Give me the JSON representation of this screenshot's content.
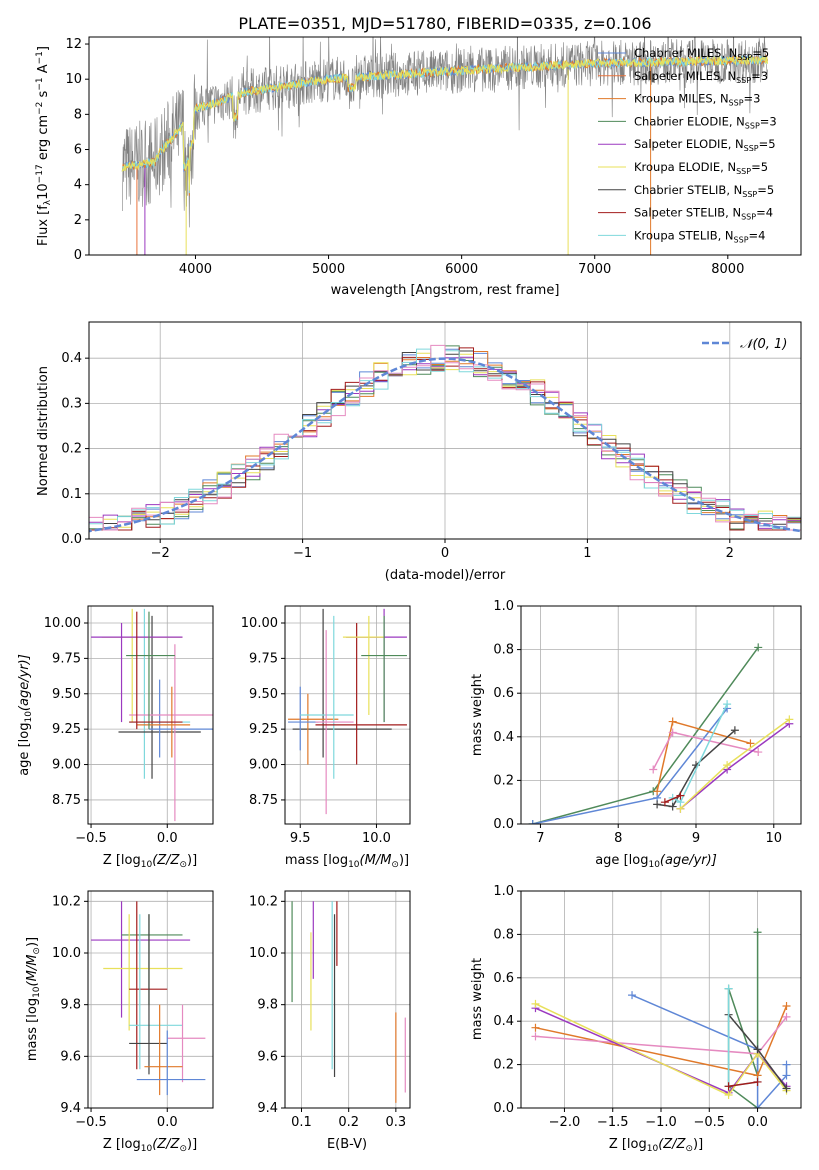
{
  "colors": {
    "c1": "#5f87d6",
    "c2": "#e8733c",
    "c3": "#e0792a",
    "c4": "#4f8a5a",
    "c5": "#9b39c0",
    "c6": "#e8e05a",
    "c7": "#444444",
    "c8": "#a21c1c",
    "c9": "#7fd8dc",
    "pink": "#e58ac0",
    "gray": "#808080"
  },
  "chart_data": [
    {
      "type": "line",
      "title": "PLATE=0351, MJD=51780, FIBERID=0335, z=0.106",
      "xlabel": "wavelength [Angstrom, rest frame]",
      "ylabel_main": "Flux [f",
      "ylabel_sub": "λ",
      "ylabel_mid": "10",
      "ylabel_sup1": "−17",
      "ylabel_end": " erg cm",
      "ylabel_sup2": "−2",
      "ylabel_s": " s",
      "ylabel_sup3": "−1",
      "ylabel_a": " A",
      "ylabel_sup4": "−1",
      "ylabel_close": "]",
      "xlim": [
        3200,
        8550
      ],
      "ylim": [
        0,
        12.4
      ],
      "xticks": [
        "4000",
        "5000",
        "6000",
        "7000",
        "8000"
      ],
      "yticks": [
        "0",
        "2",
        "4",
        "6",
        "8",
        "10",
        "12"
      ],
      "x_start": 3450,
      "x_end": 8300,
      "legend": [
        {
          "name": "Chabrier MILES, N",
          "sub": "SSP",
          "val": "=5"
        },
        {
          "name": "Salpeter MILES, N",
          "sub": "SSP",
          "val": "=3"
        },
        {
          "name": "Kroupa MILES, N",
          "sub": "SSP",
          "val": "=3"
        },
        {
          "name": "Chabrier ELODIE, N",
          "sub": "SSP",
          "val": "=3"
        },
        {
          "name": "Salpeter ELODIE, N",
          "sub": "SSP",
          "val": "=5"
        },
        {
          "name": "Kroupa ELODIE, N",
          "sub": "SSP",
          "val": "=5"
        },
        {
          "name": "Chabrier STELIB, N",
          "sub": "SSP",
          "val": "=5"
        },
        {
          "name": "Salpeter STELIB, N",
          "sub": "SSP",
          "val": "=4"
        },
        {
          "name": "Kroupa STELIB, N",
          "sub": "SSP",
          "val": "=4"
        }
      ]
    },
    {
      "type": "bar",
      "xlabel": "(data-model)/error",
      "ylabel": "Normed distribution",
      "xlim": [
        -2.5,
        2.5
      ],
      "ylim": [
        0,
        0.48
      ],
      "xticks": [
        "−2",
        "−1",
        "0",
        "1",
        "2"
      ],
      "yticks": [
        "0.0",
        "0.1",
        "0.2",
        "0.3",
        "0.4"
      ],
      "legend_label": "𝒩(0, 1)",
      "gaussian": {
        "mean": 0,
        "sigma": 1,
        "peak": 0.399
      },
      "bin_width": 0.1
    },
    {
      "type": "scatter",
      "xlabel_pre": "Z [log",
      "xlabel_sub": "10",
      "xlabel_post": "(Z/Z",
      "xlabel_odot": "⊙",
      "xlabel_end": ")]",
      "ylabel_pre": "age  [log",
      "ylabel_sub": "10",
      "ylabel_post": "(age/yr)]",
      "xlim": [
        -0.52,
        0.3
      ],
      "ylim": [
        8.58,
        10.12
      ],
      "xticks": [
        "−0.5",
        "0.0"
      ],
      "xtick_vals": [
        -0.5,
        0.0
      ],
      "yticks": [
        "8.75",
        "9.00",
        "9.25",
        "9.50",
        "9.75",
        "10.00"
      ],
      "ytick_vals": [
        8.75,
        9.0,
        9.25,
        9.5,
        9.75,
        10.0
      ],
      "points": [
        {
          "x": -0.23,
          "y": 9.9,
          "xe": [
            -0.43,
            0.1
          ],
          "ye": [
            9.3,
            10.1
          ],
          "c": "c6"
        },
        {
          "x": -0.15,
          "y": 9.3,
          "xe": [
            -0.25,
            0.15
          ],
          "ye": [
            8.9,
            10.1
          ],
          "c": "c9"
        },
        {
          "x": -0.1,
          "y": 9.23,
          "xe": [
            -0.32,
            0.22
          ],
          "ye": [
            8.9,
            10.05
          ],
          "c": "c7"
        },
        {
          "x": -0.05,
          "y": 9.25,
          "xe": [
            -0.12,
            0.3
          ],
          "ye": [
            9.05,
            9.6
          ],
          "c": "c1"
        },
        {
          "x": -0.3,
          "y": 9.9,
          "xe": [
            -0.5,
            0.1
          ],
          "ye": [
            9.3,
            10.0
          ],
          "c": "c5"
        },
        {
          "x": 0.05,
          "y": 9.35,
          "xe": [
            -0.25,
            0.3
          ],
          "ye": [
            8.6,
            9.85
          ],
          "c": "pink"
        },
        {
          "x": 0.03,
          "y": 9.28,
          "xe": [
            -0.2,
            0.15
          ],
          "ye": [
            9.05,
            9.55
          ],
          "c": "c3"
        },
        {
          "x": -0.12,
          "y": 9.77,
          "xe": [
            -0.27,
            0.05
          ],
          "ye": [
            9.25,
            10.08
          ],
          "c": "c4"
        },
        {
          "x": -0.2,
          "y": 9.3,
          "xe": [
            -0.25,
            0.1
          ],
          "ye": [
            9.25,
            10.08
          ],
          "c": "c8"
        }
      ]
    },
    {
      "type": "scatter",
      "xlabel_pre": "mass [log",
      "xlabel_sub": "10",
      "xlabel_post": "(M/M",
      "xlabel_odot": "⊙",
      "xlabel_end": ")]",
      "xlim": [
        9.4,
        10.22
      ],
      "ylim": [
        8.58,
        10.12
      ],
      "xticks": [
        "9.5",
        "10.0"
      ],
      "xtick_vals": [
        9.5,
        10.0
      ],
      "yticks": [
        "8.75",
        "9.00",
        "9.25",
        "9.50",
        "9.75",
        "10.00"
      ],
      "ytick_vals": [
        8.75,
        9.0,
        9.25,
        9.5,
        9.75,
        10.0
      ],
      "points": [
        {
          "x": 9.65,
          "y": 9.25,
          "xe": [
            9.45,
            10.1
          ],
          "ye": [
            9.05,
            10.1
          ],
          "c": "c7"
        },
        {
          "x": 9.55,
          "y": 9.32,
          "xe": [
            9.42,
            9.75
          ],
          "ye": [
            9.0,
            9.5
          ],
          "c": "c3"
        },
        {
          "x": 9.5,
          "y": 9.3,
          "xe": [
            9.42,
            9.62
          ],
          "ye": [
            9.1,
            9.55
          ],
          "c": "c1"
        },
        {
          "x": 9.72,
          "y": 9.35,
          "xe": [
            9.5,
            9.85
          ],
          "ye": [
            8.9,
            10.05
          ],
          "c": "c9"
        },
        {
          "x": 9.67,
          "y": 9.3,
          "xe": [
            9.6,
            9.85
          ],
          "ye": [
            8.65,
            9.95
          ],
          "c": "pink"
        },
        {
          "x": 9.87,
          "y": 9.28,
          "xe": [
            9.6,
            10.2
          ],
          "ye": [
            9.0,
            10.0
          ],
          "c": "c8"
        },
        {
          "x": 10.05,
          "y": 9.9,
          "xe": [
            9.8,
            10.2
          ],
          "ye": [
            9.3,
            10.1
          ],
          "c": "c5"
        },
        {
          "x": 9.95,
          "y": 9.9,
          "xe": [
            9.78,
            10.05
          ],
          "ye": [
            9.35,
            10.05
          ],
          "c": "c6"
        },
        {
          "x": 10.05,
          "y": 9.77,
          "xe": [
            9.9,
            10.2
          ],
          "ye": [
            9.3,
            10.05
          ],
          "c": "c4"
        }
      ]
    },
    {
      "type": "line",
      "xlabel_pre": "age  [log",
      "xlabel_sub": "10",
      "xlabel_post": "(age/yr)]",
      "ylabel": "mass weight",
      "xlim": [
        6.75,
        10.35
      ],
      "ylim": [
        0,
        1
      ],
      "xticks": [
        "7",
        "8",
        "9",
        "10"
      ],
      "xtick_vals": [
        7,
        8,
        9,
        10
      ],
      "yticks": [
        "0.0",
        "0.2",
        "0.4",
        "0.6",
        "0.8",
        "1.0"
      ],
      "ytick_vals": [
        0,
        0.2,
        0.4,
        0.6,
        0.8,
        1.0
      ],
      "series": [
        {
          "c": "c4",
          "x": [
            6.9,
            8.45,
            9.8
          ],
          "y": [
            0.0,
            0.15,
            0.81
          ]
        },
        {
          "c": "c1",
          "x": [
            6.9,
            8.5,
            9.4
          ],
          "y": [
            0.0,
            0.12,
            0.53
          ]
        },
        {
          "c": "c3",
          "x": [
            8.5,
            8.7,
            9.7
          ],
          "y": [
            0.15,
            0.47,
            0.37
          ]
        },
        {
          "c": "pink",
          "x": [
            8.45,
            8.7,
            9.8
          ],
          "y": [
            0.25,
            0.42,
            0.33
          ]
        },
        {
          "c": "c5",
          "x": [
            8.8,
            9.4,
            10.2
          ],
          "y": [
            0.07,
            0.25,
            0.46
          ]
        },
        {
          "c": "c6",
          "x": [
            8.8,
            9.4,
            10.2
          ],
          "y": [
            0.07,
            0.27,
            0.48
          ]
        },
        {
          "c": "c7",
          "x": [
            8.5,
            8.7,
            9.0,
            9.5
          ],
          "y": [
            0.09,
            0.08,
            0.27,
            0.43
          ]
        },
        {
          "c": "c9",
          "x": [
            8.7,
            8.8,
            9.4
          ],
          "y": [
            0.12,
            0.1,
            0.55
          ]
        },
        {
          "c": "c8",
          "x": [
            8.6,
            8.8
          ],
          "y": [
            0.1,
            0.13
          ]
        }
      ]
    },
    {
      "type": "scatter",
      "xlabel_pre": "Z [log",
      "xlabel_sub": "10",
      "xlabel_post": "(Z/Z",
      "xlabel_odot": "⊙",
      "xlabel_end": ")]",
      "ylabel_pre": "mass [log",
      "ylabel_sub": "10",
      "ylabel_post": "(M/M",
      "ylabel_odot": "⊙",
      "ylabel_end": ")]",
      "xlim": [
        -0.52,
        0.3
      ],
      "ylim": [
        9.4,
        10.24
      ],
      "xticks": [
        "−0.5",
        "0.0"
      ],
      "xtick_vals": [
        -0.5,
        0.0
      ],
      "yticks": [
        "9.4",
        "9.6",
        "9.8",
        "10.0",
        "10.2"
      ],
      "ytick_vals": [
        9.4,
        9.6,
        9.8,
        10.0,
        10.2
      ],
      "points": [
        {
          "x": -0.3,
          "y": 10.05,
          "xe": [
            -0.5,
            0.15
          ],
          "ye": [
            9.75,
            10.2
          ],
          "c": "c5"
        },
        {
          "x": -0.12,
          "y": 10.07,
          "xe": [
            -0.3,
            0.1
          ],
          "ye": [
            9.8,
            10.15
          ],
          "c": "c4"
        },
        {
          "x": -0.25,
          "y": 9.94,
          "xe": [
            -0.42,
            0.1
          ],
          "ye": [
            9.7,
            10.15
          ],
          "c": "c6"
        },
        {
          "x": -0.2,
          "y": 9.86,
          "xe": [
            -0.25,
            0.0
          ],
          "ye": [
            9.55,
            10.2
          ],
          "c": "c8"
        },
        {
          "x": -0.18,
          "y": 9.72,
          "xe": [
            -0.25,
            0.1
          ],
          "ye": [
            9.55,
            10.15
          ],
          "c": "c9"
        },
        {
          "x": -0.12,
          "y": 9.65,
          "xe": [
            -0.25,
            0.0
          ],
          "ye": [
            9.53,
            10.15
          ],
          "c": "c7"
        },
        {
          "x": 0.1,
          "y": 9.67,
          "xe": [
            0.0,
            0.25
          ],
          "ye": [
            9.5,
            9.8
          ],
          "c": "pink"
        },
        {
          "x": -0.05,
          "y": 9.56,
          "xe": [
            -0.15,
            0.1
          ],
          "ye": [
            9.45,
            9.8
          ],
          "c": "c3"
        },
        {
          "x": 0.0,
          "y": 9.51,
          "xe": [
            -0.2,
            0.25
          ],
          "ye": [
            9.45,
            9.7
          ],
          "c": "c1"
        }
      ]
    },
    {
      "type": "scatter",
      "xlabel": "E(B-V)",
      "xlim": [
        0.065,
        0.33
      ],
      "ylim": [
        9.4,
        10.24
      ],
      "xticks": [
        "0.1",
        "0.2",
        "0.3"
      ],
      "xtick_vals": [
        0.1,
        0.2,
        0.3
      ],
      "yticks": [
        "9.4",
        "9.6",
        "9.8",
        "10.0",
        "10.2"
      ],
      "ytick_vals": [
        9.4,
        9.6,
        9.8,
        10.0,
        10.2
      ],
      "bars": [
        {
          "x": 0.08,
          "ye": [
            9.81,
            10.2
          ],
          "c": "c4"
        },
        {
          "x": 0.12,
          "ye": [
            9.7,
            10.08
          ],
          "c": "c6"
        },
        {
          "x": 0.125,
          "ye": [
            9.9,
            10.2
          ],
          "c": "c5"
        },
        {
          "x": 0.165,
          "ye": [
            9.55,
            10.2
          ],
          "c": "c9"
        },
        {
          "x": 0.17,
          "ye": [
            9.52,
            10.15
          ],
          "c": "c7"
        },
        {
          "x": 0.175,
          "ye": [
            9.95,
            10.2
          ],
          "c": "c8"
        },
        {
          "x": 0.3,
          "ye": [
            9.42,
            9.77
          ],
          "c": "c3"
        },
        {
          "x": 0.32,
          "ye": [
            9.46,
            9.75
          ],
          "c": "pink"
        }
      ]
    },
    {
      "type": "line",
      "xlabel_pre": "Z [log",
      "xlabel_sub": "10",
      "xlabel_post": "(Z/Z",
      "xlabel_odot": "⊙",
      "xlabel_end": ")]",
      "ylabel": "mass weight",
      "xlim": [
        -2.45,
        0.45
      ],
      "ylim": [
        0,
        1
      ],
      "xticks": [
        "−2.0",
        "−1.5",
        "−1.0",
        "−0.5",
        "0.0"
      ],
      "xtick_vals": [
        -2.0,
        -1.5,
        -1.0,
        -0.5,
        0.0
      ],
      "yticks": [
        "0.0",
        "0.2",
        "0.4",
        "0.6",
        "0.8",
        "1.0"
      ],
      "ytick_vals": [
        0,
        0.2,
        0.4,
        0.6,
        0.8,
        1.0
      ],
      "series": [
        {
          "c": "c4",
          "x": [
            0.0,
            0.0,
            -0.3,
            -0.3,
            0.0
          ],
          "y": [
            0.81,
            0.15,
            0.55,
            0.1,
            0.0
          ]
        },
        {
          "c": "c1",
          "x": [
            -1.3,
            0.0,
            0.0,
            0.3,
            0.3
          ],
          "y": [
            0.52,
            0.27,
            0.0,
            0.15,
            0.2
          ]
        },
        {
          "c": "c3",
          "x": [
            -2.3,
            0.0,
            0.3
          ],
          "y": [
            0.37,
            0.15,
            0.47
          ]
        },
        {
          "c": "pink",
          "x": [
            -2.3,
            0.0,
            0.3
          ],
          "y": [
            0.33,
            0.25,
            0.42
          ]
        },
        {
          "c": "c5",
          "x": [
            -2.3,
            -0.3,
            0.0,
            0.3
          ],
          "y": [
            0.46,
            0.07,
            0.25,
            0.1
          ]
        },
        {
          "c": "c6",
          "x": [
            -2.3,
            -0.3,
            0.0,
            0.3
          ],
          "y": [
            0.48,
            0.06,
            0.25,
            0.08
          ]
        },
        {
          "c": "c7",
          "x": [
            -0.3,
            0.0,
            0.3
          ],
          "y": [
            0.43,
            0.27,
            0.09
          ]
        },
        {
          "c": "c9",
          "x": [
            -0.3,
            -0.3,
            0.0
          ],
          "y": [
            0.55,
            0.1,
            0.12
          ]
        },
        {
          "c": "c8",
          "x": [
            -0.3,
            0.0
          ],
          "y": [
            0.1,
            0.12
          ]
        }
      ]
    }
  ]
}
